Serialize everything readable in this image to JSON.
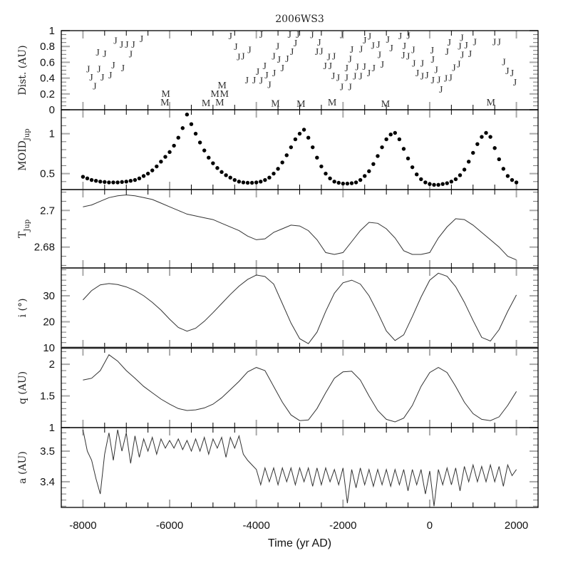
{
  "chart_data": {
    "type": "line",
    "title": "2006WS3",
    "xlabel": "Time (yr AD)",
    "xlim": [
      -8500,
      2500
    ],
    "xticks": [
      -8000,
      -6000,
      -4000,
      -2000,
      0,
      2000
    ],
    "xtick_labels": [
      "-8000",
      "-6000",
      "-4000",
      "-2000",
      "0",
      "2000"
    ],
    "x_minor_tick": 500,
    "grid": false,
    "panels": [
      {
        "id": "dist",
        "ylabel": "Dist. (AU)",
        "ylim": [
          0,
          1
        ],
        "yticks": [
          0,
          0.2,
          0.4,
          0.6,
          0.8,
          1
        ],
        "ytick_labels": [
          "0",
          "0.2",
          "0.4",
          "0.6",
          "0.8",
          "1"
        ],
        "minor_tick": 0.05,
        "type": "text-markers",
        "series": [
          {
            "name": "J",
            "points": [
              [
                -7880,
                0.52
              ],
              [
                -7810,
                0.44
              ],
              [
                -7730,
                0.41
              ],
              [
                -7630,
                0.52
              ],
              [
                -7550,
                0.44
              ],
              [
                -7370,
                0.44
              ],
              [
                -7300,
                0.54
              ],
              [
                -7080,
                0.53
              ],
              [
                -7660,
                0.73
              ],
              [
                -7500,
                0.71
              ],
              [
                -7250,
                0.88
              ],
              [
                -7110,
                0.83
              ],
              [
                -6990,
                0.83
              ],
              [
                -6900,
                0.79
              ],
              [
                -6840,
                0.8
              ],
              [
                -6650,
                0.9
              ],
              [
                -4600,
                0.99
              ],
              [
                -4475,
                0.8
              ],
              [
                -4410,
                0.67
              ],
              [
                -4310,
                0.68
              ],
              [
                -4160,
                0.76
              ],
              [
                -4220,
                0.38
              ],
              [
                -4050,
                0.38
              ],
              [
                -3970,
                0.38
              ],
              [
                -3890,
                0.4
              ],
              [
                -3810,
                0.56
              ],
              [
                -3765,
                0.44
              ],
              [
                -3700,
                0.4
              ],
              [
                -3600,
                0.68
              ],
              [
                -3590,
                0.47
              ],
              [
                -3510,
                0.59
              ],
              [
                -3480,
                0.64
              ],
              [
                -3400,
                0.53
              ],
              [
                -3290,
                0.65
              ],
              [
                -3180,
                0.74
              ],
              [
                -3100,
                0.82
              ],
              [
                -3890,
                0.98
              ],
              [
                -3235,
                0.98
              ],
              [
                -3045,
                0.98
              ],
              [
                -2715,
                0.95
              ],
              [
                -2605,
                0.74
              ],
              [
                -2550,
                0.75
              ],
              [
                -2500,
                0.85
              ],
              [
                -2415,
                0.56
              ],
              [
                -2330,
                0.59
              ],
              [
                -2295,
                0.64
              ],
              [
                -2210,
                0.68
              ],
              [
                -2225,
                0.46
              ],
              [
                -2115,
                0.41
              ],
              [
                -2030,
                0.4
              ],
              [
                -1920,
                0.41
              ],
              [
                -1840,
                0.4
              ],
              [
                -1730,
                0.43
              ],
              [
                -1675,
                0.49
              ],
              [
                -1595,
                0.43
              ],
              [
                -1510,
                0.44
              ],
              [
                -1405,
                0.47
              ],
              [
                -1295,
                0.53
              ],
              [
                -1920,
                0.53
              ],
              [
                -1840,
                0.59
              ],
              [
                -1800,
                0.74
              ],
              [
                -1585,
                0.77
              ],
              [
                -1500,
                0.83
              ],
              [
                -2030,
                0.95
              ],
              [
                -1390,
                0.96
              ],
              [
                -1310,
                0.95
              ],
              [
                -1185,
                0.83
              ],
              [
                -1160,
                0.7
              ],
              [
                -1095,
                0.71
              ],
              [
                -965,
                0.89
              ],
              [
                -885,
                1.0
              ],
              [
                -680,
                1.02
              ],
              [
                -585,
                1.0
              ],
              [
                -490,
                0.94
              ],
              [
                -610,
                0.8
              ],
              [
                -500,
                0.68
              ],
              [
                -380,
                0.76
              ],
              [
                -365,
                0.59
              ],
              [
                -285,
                0.55
              ],
              [
                -175,
                0.59
              ],
              [
                -175,
                0.43
              ],
              [
                -65,
                0.44
              ],
              [
                70,
                0.38
              ],
              [
                150,
                0.43
              ],
              [
                210,
                0.49
              ],
              [
                260,
                0.37
              ],
              [
                370,
                0.4
              ],
              [
                480,
                0.41
              ],
              [
                560,
                0.43
              ],
              [
                70,
                0.56
              ],
              [
                55,
                0.73
              ],
              [
                400,
                0.74
              ],
              [
                450,
                0.75
              ],
              [
                670,
                0.58
              ],
              [
                750,
                0.59
              ],
              [
                690,
                0.7
              ],
              [
                840,
                0.71
              ],
              [
                930,
                0.71
              ],
              [
                740,
                0.86
              ],
              [
                1040,
                0.86
              ],
              [
                1490,
                0.86
              ],
              [
                1600,
                0.86
              ],
              [
                1710,
                0.61
              ],
              [
                1790,
                0.55
              ],
              [
                1900,
                0.47
              ],
              [
                1965,
                0.46
              ]
            ]
          },
          {
            "name": "M",
            "points": [
              [
                -6110,
                0.07
              ],
              [
                -6090,
                0.07
              ],
              [
                -5160,
                0.09
              ],
              [
                -4955,
                0.07
              ],
              [
                -4845,
                0.07
              ],
              [
                -4790,
                0.07
              ],
              [
                -4740,
                0.07
              ],
              [
                -3560,
                0.06
              ],
              [
                -2970,
                0.08
              ],
              [
                -2250,
                0.1
              ],
              [
                -1020,
                0.08
              ],
              [
                1410,
                0.07
              ]
            ]
          }
        ]
      },
      {
        "id": "moid",
        "ylabel": "MOID",
        "ylabel_sub": "Jup",
        "ylim": [
          0.3,
          1.3
        ],
        "yticks": [
          0.5,
          1
        ],
        "ytick_labels": [
          "0.5",
          "1"
        ],
        "minor_tick": 0.1,
        "type": "scatter",
        "x_start": -8000,
        "x_step": 100,
        "values": [
          0.46,
          0.44,
          0.42,
          0.41,
          0.4,
          0.395,
          0.39,
          0.39,
          0.39,
          0.395,
          0.4,
          0.41,
          0.42,
          0.44,
          0.47,
          0.5,
          0.54,
          0.59,
          0.65,
          0.71,
          0.77,
          0.85,
          0.95,
          1.07,
          1.24,
          1.12,
          1.0,
          0.89,
          0.79,
          0.7,
          0.63,
          0.57,
          0.52,
          0.48,
          0.45,
          0.42,
          0.4,
          0.39,
          0.385,
          0.385,
          0.39,
          0.4,
          0.42,
          0.45,
          0.5,
          0.56,
          0.64,
          0.73,
          0.83,
          0.93,
          1.0,
          1.05,
          0.95,
          0.83,
          0.7,
          0.59,
          0.5,
          0.44,
          0.4,
          0.385,
          0.375,
          0.375,
          0.38,
          0.39,
          0.42,
          0.47,
          0.53,
          0.62,
          0.72,
          0.83,
          0.93,
          0.99,
          1.01,
          0.93,
          0.81,
          0.69,
          0.58,
          0.49,
          0.43,
          0.39,
          0.37,
          0.36,
          0.36,
          0.37,
          0.38,
          0.4,
          0.43,
          0.48,
          0.55,
          0.65,
          0.76,
          0.87,
          0.96,
          1.01,
          0.96,
          0.82,
          0.68,
          0.56,
          0.47,
          0.42,
          0.39
        ]
      },
      {
        "id": "tjup",
        "ylabel": "T",
        "ylabel_sub": "Jup",
        "ylim": [
          2.6686,
          2.7114
        ],
        "yticks": [
          2.68,
          2.7
        ],
        "ytick_labels": [
          "2.68",
          "2.7"
        ],
        "minor_tick": 0.005,
        "type": "line",
        "x_start": -8000,
        "x_step": 200,
        "values": [
          2.702,
          2.703,
          2.705,
          2.707,
          2.708,
          2.7085,
          2.708,
          2.707,
          2.706,
          2.704,
          2.702,
          2.7,
          2.698,
          2.697,
          2.696,
          2.695,
          2.693,
          2.691,
          2.689,
          2.686,
          2.684,
          2.6845,
          2.688,
          2.69,
          2.692,
          2.6915,
          2.689,
          2.684,
          2.677,
          2.676,
          2.677,
          2.683,
          2.689,
          2.6935,
          2.693,
          2.69,
          2.685,
          2.678,
          2.676,
          2.676,
          2.677,
          2.685,
          2.691,
          2.6955,
          2.695,
          2.692,
          2.688,
          2.684,
          2.68,
          2.675,
          2.673
        ]
      },
      {
        "id": "incl",
        "ylabel": "i (°)",
        "ylim": [
          10,
          40.7
        ],
        "yticks": [
          10,
          20,
          30
        ],
        "ytick_labels": [
          "10",
          "20",
          "30"
        ],
        "minor_tick": 2,
        "type": "line",
        "x_start": -8000,
        "x_step": 200,
        "values": [
          28.4,
          32.0,
          34.2,
          34.7,
          34.3,
          33.4,
          32.0,
          30.0,
          27.5,
          24.5,
          21.0,
          17.8,
          16.4,
          17.5,
          20.2,
          23.5,
          27.0,
          30.5,
          33.7,
          36.3,
          38.0,
          37.4,
          34.5,
          27.0,
          19.5,
          13.5,
          11.6,
          16.0,
          24.0,
          31.0,
          35.0,
          36.0,
          34.5,
          30.0,
          23.5,
          16.5,
          12.8,
          15.0,
          22.0,
          29.5,
          36.0,
          38.7,
          37.5,
          33.5,
          27.5,
          20.5,
          14.0,
          12.6,
          17.0,
          24.0,
          30.3
        ]
      },
      {
        "id": "q",
        "ylabel": "q (AU)",
        "ylim": [
          1,
          2.26
        ],
        "yticks": [
          1,
          1.5,
          2
        ],
        "ytick_labels": [
          "1",
          "1.5",
          "2"
        ],
        "minor_tick": 0.1,
        "type": "line",
        "x_start": -8000,
        "x_step": 200,
        "values": [
          1.75,
          1.78,
          1.9,
          2.15,
          2.05,
          1.9,
          1.78,
          1.65,
          1.55,
          1.45,
          1.37,
          1.3,
          1.27,
          1.28,
          1.31,
          1.37,
          1.47,
          1.6,
          1.73,
          1.88,
          1.95,
          1.9,
          1.65,
          1.4,
          1.2,
          1.11,
          1.12,
          1.3,
          1.55,
          1.78,
          1.88,
          1.89,
          1.75,
          1.5,
          1.27,
          1.13,
          1.09,
          1.15,
          1.35,
          1.65,
          1.87,
          1.95,
          1.87,
          1.65,
          1.4,
          1.22,
          1.13,
          1.11,
          1.17,
          1.35,
          1.57
        ]
      },
      {
        "id": "a",
        "ylabel": "a (AU)",
        "ylim": [
          3.316,
          3.577
        ],
        "yticks": [
          3.4,
          3.5
        ],
        "ytick_labels": [
          "3.4",
          "3.5"
        ],
        "minor_tick": 0.02,
        "type": "line",
        "x_start": -8000,
        "x_step": 100,
        "values": [
          3.57,
          3.5,
          3.47,
          3.41,
          3.36,
          3.49,
          3.56,
          3.47,
          3.57,
          3.5,
          3.56,
          3.46,
          3.55,
          3.48,
          3.54,
          3.5,
          3.545,
          3.49,
          3.54,
          3.51,
          3.535,
          3.51,
          3.54,
          3.505,
          3.535,
          3.5,
          3.54,
          3.5,
          3.545,
          3.49,
          3.54,
          3.51,
          3.545,
          3.48,
          3.545,
          3.51,
          3.55,
          3.49,
          3.47,
          3.455,
          3.44,
          3.39,
          3.445,
          3.4,
          3.445,
          3.39,
          3.445,
          3.4,
          3.445,
          3.39,
          3.445,
          3.4,
          3.445,
          3.385,
          3.445,
          3.39,
          3.445,
          3.4,
          3.44,
          3.39,
          3.445,
          3.33,
          3.44,
          3.38,
          3.445,
          3.39,
          3.44,
          3.385,
          3.44,
          3.39,
          3.44,
          3.385,
          3.44,
          3.39,
          3.44,
          3.37,
          3.44,
          3.39,
          3.44,
          3.36,
          3.435,
          3.32,
          3.44,
          3.39,
          3.445,
          3.39,
          3.445,
          3.37,
          3.45,
          3.4,
          3.455,
          3.4,
          3.45,
          3.4,
          3.455,
          3.4,
          3.45,
          3.385,
          3.455,
          3.42,
          3.44
        ]
      }
    ]
  },
  "colors": {
    "line": "#333333",
    "dots": "#000000",
    "markers": "#333333",
    "major_tick": "#aaaaaa",
    "frame": "#000000"
  }
}
